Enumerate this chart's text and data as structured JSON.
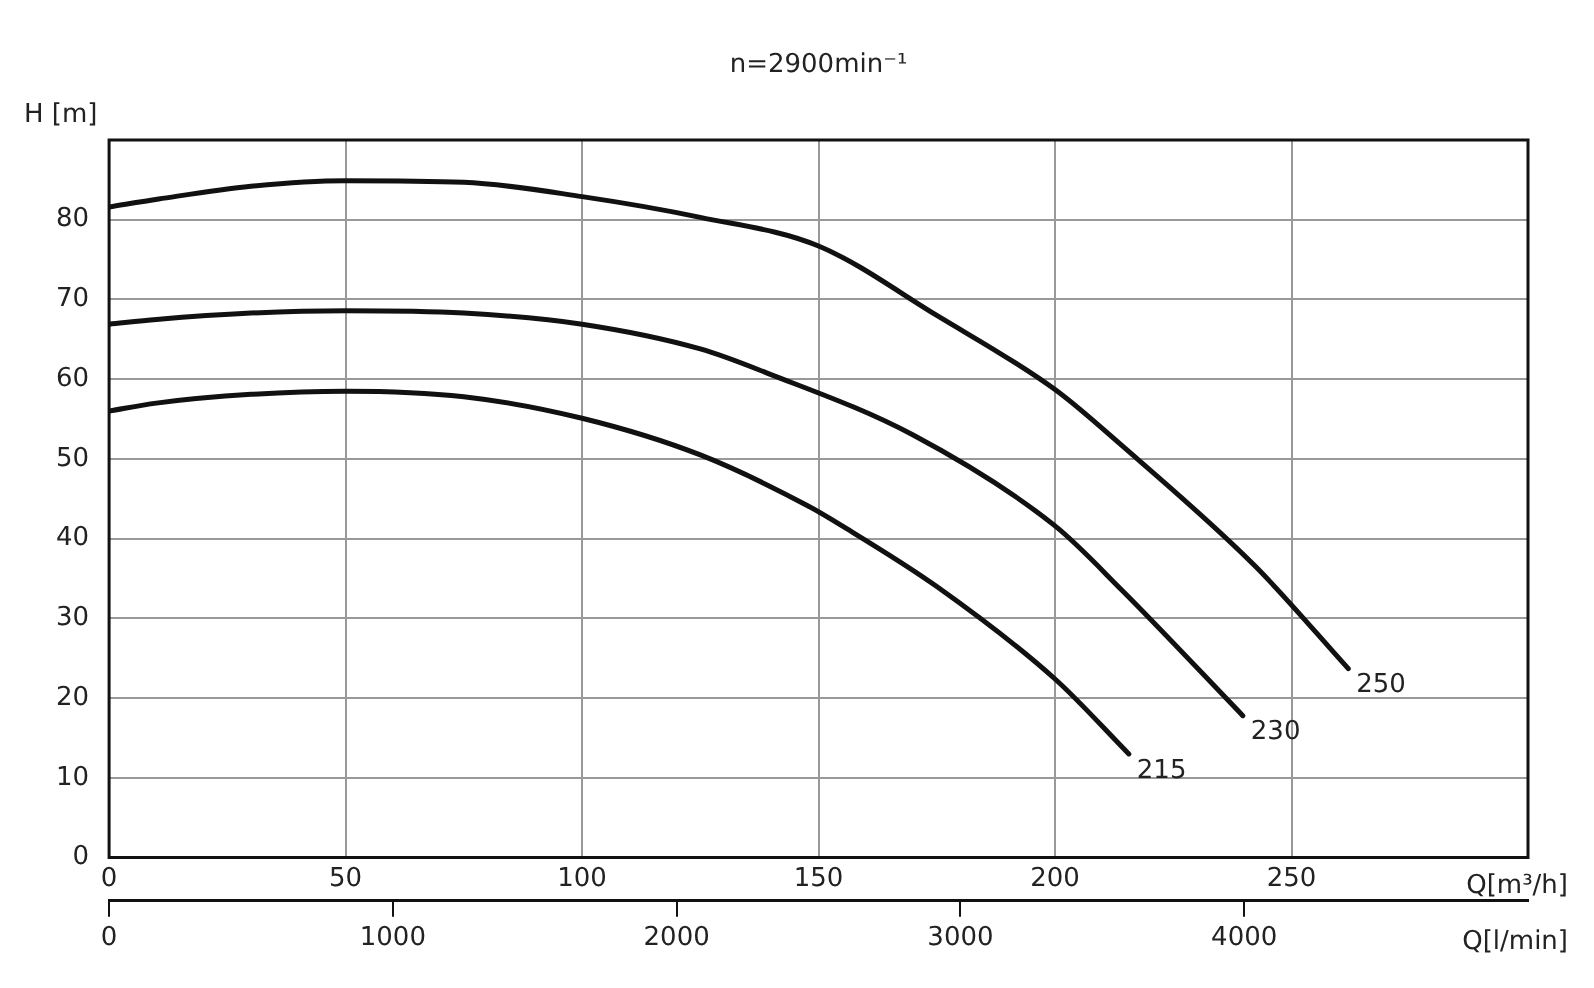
{
  "chart_data": {
    "type": "line",
    "title": "n=2900min⁻¹",
    "xlabel": "Q[m³/h]",
    "ylabel": "H [m]",
    "x2label": "Q[l/min]",
    "xlim": [
      0,
      300
    ],
    "xticks": [
      0,
      50,
      100,
      150,
      200,
      250
    ],
    "ylim": [
      0,
      90
    ],
    "yticks": [
      0,
      10,
      20,
      30,
      40,
      50,
      60,
      70,
      80
    ],
    "x2lim": [
      0,
      5000
    ],
    "x2ticks": [
      0,
      1000,
      2000,
      3000,
      4000
    ],
    "grid": true,
    "legend": false,
    "marker": "none",
    "line_style": "solid",
    "series": [
      {
        "name": "215",
        "color": "#111111",
        "x": [
          0,
          10,
          30,
          50,
          75,
          100,
          125,
          147.5,
          155,
          175,
          200,
          215.6
        ],
        "values": [
          56,
          57,
          58.1,
          58.5,
          57.8,
          55.1,
          50.5,
          44.2,
          41.6,
          34,
          22.4,
          13
        ]
      },
      {
        "name": "230",
        "color": "#111111",
        "x": [
          0,
          10,
          30,
          50,
          75,
          100,
          125,
          139,
          170,
          200,
          214.2,
          239.7
        ],
        "values": [
          66.9,
          67.5,
          68.3,
          68.6,
          68.3,
          66.9,
          63.8,
          60.8,
          53,
          41.6,
          33.5,
          17.8
        ]
      },
      {
        "name": "250",
        "color": "#111111",
        "x": [
          0,
          10.5,
          30,
          50,
          75,
          100,
          125,
          150,
          175,
          200,
          213.5,
          242.4,
          262
        ],
        "values": [
          81.6,
          82.6,
          84.2,
          84.9,
          84.7,
          82.9,
          80.3,
          76.7,
          68,
          58.7,
          52,
          36.5,
          23.7
        ]
      }
    ]
  }
}
